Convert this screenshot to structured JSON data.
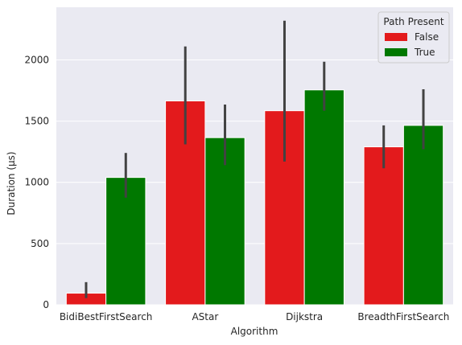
{
  "chart_data": {
    "type": "bar",
    "title": "",
    "xlabel": "Algorithm",
    "ylabel": "Duration (µs)",
    "categories": [
      "BidiBestFirstSearch",
      "AStar",
      "Dijkstra",
      "BreadthFirstSearch"
    ],
    "ylim": [
      0,
      2430
    ],
    "yticks": [
      0,
      500,
      1000,
      1500,
      2000
    ],
    "grid": true,
    "legend": {
      "title": "Path Present",
      "placement": "top-right"
    },
    "series": [
      {
        "name": "False",
        "color": "#e31a1c",
        "values": [
          95,
          1665,
          1585,
          1290
        ],
        "error_low": [
          55,
          1310,
          1170,
          1115
        ],
        "error_high": [
          185,
          2110,
          2320,
          1465
        ]
      },
      {
        "name": "True",
        "color": "#007800",
        "values": [
          1040,
          1365,
          1755,
          1465
        ],
        "error_low": [
          875,
          1140,
          1585,
          1270
        ],
        "error_high": [
          1240,
          1635,
          1985,
          1760
        ]
      }
    ],
    "colors": {
      "plot_background": "#eaeaf2",
      "grid": "#ffffff",
      "error_bar": "#424242"
    }
  }
}
